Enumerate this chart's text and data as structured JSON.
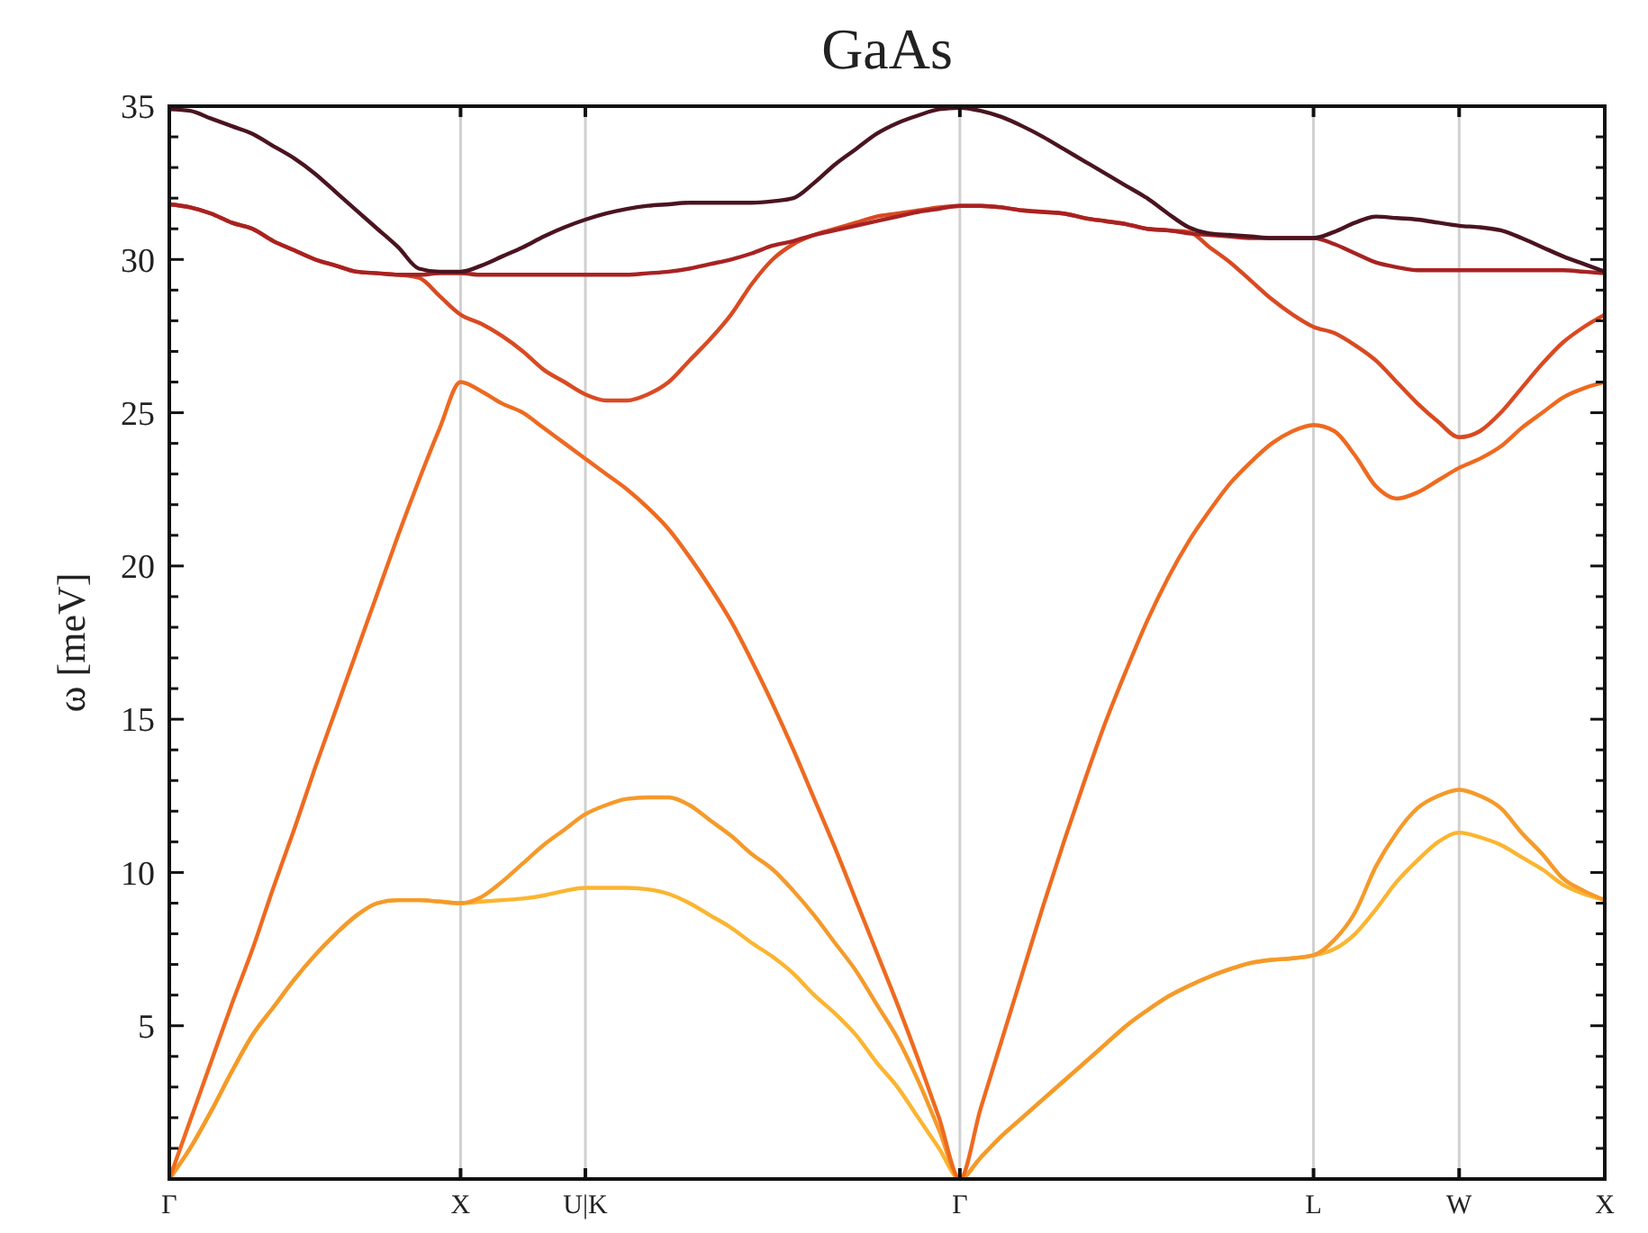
{
  "chart_data": {
    "type": "line",
    "title": "GaAs",
    "ylabel": "ω [meV]",
    "categories": [
      "Γ",
      null,
      null,
      null,
      null,
      null,
      null,
      null,
      null,
      null,
      null,
      null,
      null,
      null,
      "X",
      null,
      null,
      null,
      null,
      null,
      "U|K",
      null,
      null,
      null,
      null,
      null,
      null,
      null,
      null,
      null,
      null,
      null,
      null,
      null,
      null,
      null,
      null,
      null,
      "Γ",
      null,
      null,
      null,
      null,
      null,
      null,
      null,
      null,
      null,
      null,
      null,
      null,
      null,
      null,
      null,
      null,
      "L",
      null,
      null,
      null,
      null,
      null,
      null,
      "W",
      null,
      null,
      null,
      null,
      null,
      null,
      "X"
    ],
    "series": [
      {
        "color": "#fbb531",
        "values": [
          0,
          1.0,
          2.2,
          3.5,
          4.7,
          5.6,
          6.5,
          7.3,
          8.0,
          8.6,
          9.0,
          9.1,
          9.1,
          9.05,
          9.0,
          9.05,
          9.1,
          9.15,
          9.25,
          9.4,
          9.5,
          9.5,
          9.5,
          9.45,
          9.3,
          9.0,
          8.6,
          8.2,
          7.7,
          7.25,
          6.7,
          6.0,
          5.4,
          4.7,
          3.8,
          3.0,
          2.0,
          1.0,
          0,
          0.7,
          1.4,
          2.0,
          2.6,
          3.2,
          3.8,
          4.4,
          5.0,
          5.5,
          5.95,
          6.3,
          6.6,
          6.85,
          7.05,
          7.15,
          7.2,
          7.3,
          7.5,
          8.0,
          8.8,
          9.7,
          10.4,
          11.0,
          11.3,
          11.15,
          10.9,
          10.5,
          10.1,
          9.6,
          9.3,
          9.1
        ]
      },
      {
        "color": "#f59a2a",
        "values": [
          0,
          1.0,
          2.2,
          3.5,
          4.7,
          5.6,
          6.5,
          7.3,
          8.0,
          8.6,
          9.0,
          9.1,
          9.1,
          9.05,
          9.0,
          9.2,
          9.7,
          10.3,
          10.9,
          11.4,
          11.9,
          12.2,
          12.4,
          12.45,
          12.45,
          12.2,
          11.7,
          11.2,
          10.6,
          10.1,
          9.4,
          8.6,
          7.7,
          6.8,
          5.7,
          4.6,
          3.2,
          1.6,
          0,
          0.7,
          1.4,
          2.0,
          2.6,
          3.2,
          3.8,
          4.4,
          5.0,
          5.5,
          5.95,
          6.3,
          6.6,
          6.85,
          7.05,
          7.15,
          7.2,
          7.3,
          7.8,
          8.7,
          10.2,
          11.3,
          12.1,
          12.5,
          12.7,
          12.5,
          12.1,
          11.3,
          10.6,
          9.8,
          9.4,
          9.1
        ]
      },
      {
        "color": "#ee6a20",
        "values": [
          0,
          1.9,
          3.8,
          5.7,
          7.5,
          9.5,
          11.4,
          13.4,
          15.3,
          17.2,
          19.1,
          21.0,
          22.8,
          24.5,
          26.0,
          25.7,
          25.3,
          25.0,
          24.5,
          24.0,
          23.5,
          23.0,
          22.5,
          21.9,
          21.2,
          20.3,
          19.3,
          18.2,
          16.9,
          15.5,
          14.0,
          12.4,
          10.8,
          9.1,
          7.4,
          5.7,
          3.9,
          2.0,
          0,
          2.3,
          4.5,
          6.7,
          8.9,
          11.0,
          13.0,
          14.9,
          16.6,
          18.2,
          19.6,
          20.8,
          21.8,
          22.7,
          23.4,
          24.0,
          24.4,
          24.6,
          24.4,
          23.6,
          22.6,
          22.2,
          22.4,
          22.8,
          23.2,
          23.5,
          23.9,
          24.5,
          25.0,
          25.5,
          25.8,
          26.0
        ]
      },
      {
        "color": "#d94a22",
        "values": [
          31.8,
          31.7,
          31.5,
          31.2,
          31.0,
          30.6,
          30.3,
          30.0,
          29.8,
          29.6,
          29.55,
          29.5,
          29.4,
          28.8,
          28.2,
          27.9,
          27.5,
          27.0,
          26.4,
          26.0,
          25.6,
          25.4,
          25.4,
          25.6,
          26.0,
          26.7,
          27.4,
          28.2,
          29.2,
          30.0,
          30.5,
          30.8,
          31.0,
          31.2,
          31.4,
          31.5,
          31.6,
          31.7,
          31.75,
          31.75,
          31.7,
          31.6,
          31.55,
          31.5,
          31.35,
          31.25,
          31.15,
          31.0,
          30.95,
          30.9,
          30.4,
          29.9,
          29.3,
          28.7,
          28.2,
          27.8,
          27.6,
          27.2,
          26.7,
          26.0,
          25.3,
          24.7,
          24.2,
          24.4,
          25.0,
          25.8,
          26.6,
          27.3,
          27.8,
          28.2
        ]
      },
      {
        "color": "#a82222",
        "values": [
          31.8,
          31.7,
          31.5,
          31.2,
          31.0,
          30.6,
          30.3,
          30.0,
          29.8,
          29.6,
          29.55,
          29.5,
          29.5,
          29.55,
          29.55,
          29.5,
          29.5,
          29.5,
          29.5,
          29.5,
          29.5,
          29.5,
          29.5,
          29.55,
          29.6,
          29.7,
          29.85,
          30.0,
          30.2,
          30.45,
          30.6,
          30.8,
          30.95,
          31.1,
          31.25,
          31.4,
          31.55,
          31.65,
          31.75,
          31.75,
          31.7,
          31.6,
          31.55,
          31.5,
          31.35,
          31.25,
          31.15,
          31.0,
          30.95,
          30.85,
          30.8,
          30.75,
          30.7,
          30.7,
          30.7,
          30.7,
          30.5,
          30.2,
          29.9,
          29.75,
          29.65,
          29.65,
          29.65,
          29.65,
          29.65,
          29.65,
          29.65,
          29.65,
          29.6,
          29.55
        ]
      },
      {
        "color": "#4a1420",
        "values": [
          34.9,
          34.85,
          34.6,
          34.35,
          34.1,
          33.7,
          33.3,
          32.8,
          32.2,
          31.6,
          31.0,
          30.4,
          29.7,
          29.6,
          29.6,
          29.8,
          30.1,
          30.4,
          30.75,
          31.05,
          31.3,
          31.5,
          31.65,
          31.75,
          31.8,
          31.85,
          31.85,
          31.85,
          31.85,
          31.9,
          32.0,
          32.5,
          33.1,
          33.6,
          34.1,
          34.45,
          34.7,
          34.9,
          34.95,
          34.85,
          34.65,
          34.35,
          34.0,
          33.6,
          33.2,
          32.8,
          32.4,
          32.0,
          31.5,
          31.05,
          30.85,
          30.8,
          30.75,
          30.7,
          30.7,
          30.7,
          30.9,
          31.2,
          31.4,
          31.35,
          31.3,
          31.2,
          31.1,
          31.05,
          30.95,
          30.7,
          30.4,
          30.1,
          29.85,
          29.6
        ]
      }
    ],
    "ylim": [
      0,
      35
    ],
    "yticks": [
      {
        "value": 0,
        "label": null
      },
      {
        "value": 1,
        "label": null
      },
      {
        "value": 2,
        "label": null
      },
      {
        "value": 3,
        "label": null
      },
      {
        "value": 4,
        "label": null
      },
      5,
      {
        "value": 6,
        "label": null
      },
      {
        "value": 7,
        "label": null
      },
      {
        "value": 8,
        "label": null
      },
      {
        "value": 9,
        "label": null
      },
      10,
      {
        "value": 11,
        "label": null
      },
      {
        "value": 12,
        "label": null
      },
      {
        "value": 13,
        "label": null
      },
      {
        "value": 14,
        "label": null
      },
      15,
      {
        "value": 16,
        "label": null
      },
      {
        "value": 17,
        "label": null
      },
      {
        "value": 18,
        "label": null
      },
      {
        "value": 19,
        "label": null
      },
      20,
      {
        "value": 21,
        "label": null
      },
      {
        "value": 22,
        "label": null
      },
      {
        "value": 23,
        "label": null
      },
      {
        "value": 24,
        "label": null
      },
      25,
      {
        "value": 26,
        "label": null
      },
      {
        "value": 27,
        "label": null
      },
      {
        "value": 28,
        "label": null
      },
      {
        "value": 29,
        "label": null
      },
      30,
      {
        "value": 31,
        "label": null
      },
      {
        "value": 32,
        "label": null
      },
      {
        "value": 33,
        "label": null
      },
      {
        "value": 34,
        "label": null
      },
      35
    ],
    "grid": "x",
    "marker": "none",
    "line_style": "solid"
  }
}
